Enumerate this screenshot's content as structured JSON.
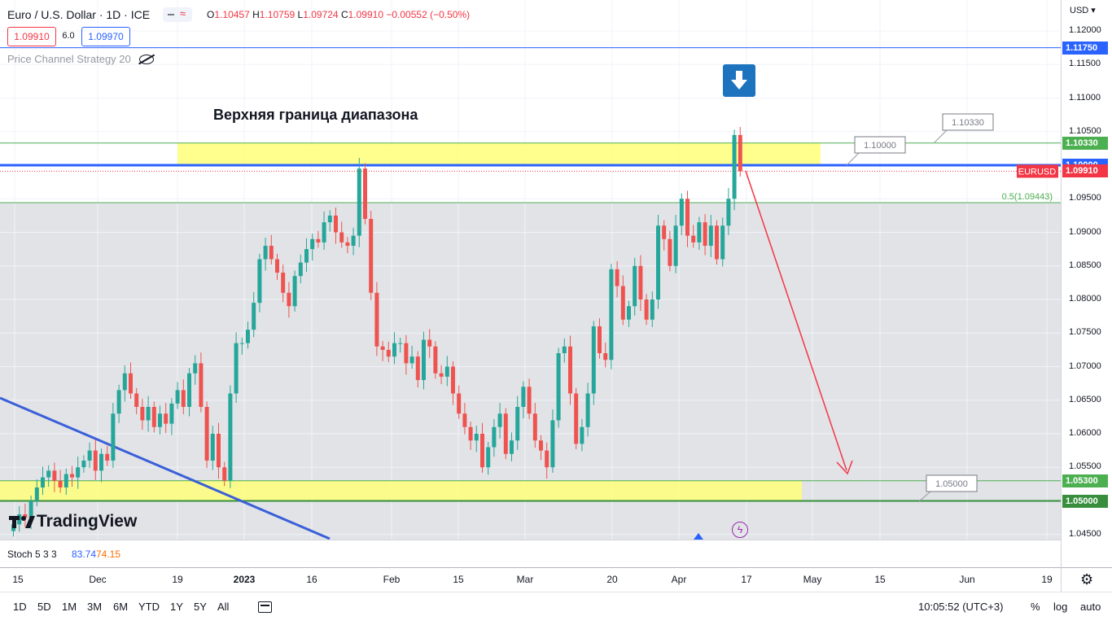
{
  "symbol": {
    "name": "Euro / U.S. Dollar · 1D · ICE",
    "ohlc": {
      "o_label": "O",
      "o": "1.10457",
      "h_label": "H",
      "h": "1.10759",
      "l_label": "L",
      "l": "1.09724",
      "c_label": "C",
      "c": "1.09910",
      "change": "−0.00552 (−0.50%)"
    },
    "sell_price": "1.09910",
    "spread": "6.0",
    "buy_price": "1.09970"
  },
  "strategy_label": "Price Channel Strategy 20",
  "annotation_text": "Верхняя граница диапазона",
  "currency": "USD",
  "price_ticks": [
    "1.12000",
    "1.11500",
    "1.11000",
    "1.10500",
    "1.10000",
    "1.09500",
    "1.09000",
    "1.08500",
    "1.08000",
    "1.07500",
    "1.07000",
    "1.06500",
    "1.06000",
    "1.05500",
    "1.05000",
    "1.04500"
  ],
  "price_labels": [
    {
      "text": "1.11750",
      "color": "#2962ff"
    },
    {
      "text": "1.10330",
      "color": "#4caf50"
    },
    {
      "text": "1.10000",
      "color": "#2962ff"
    },
    {
      "text": "1.09910",
      "color": "#f23645"
    },
    {
      "text": "1.05300",
      "color": "#4caf50"
    },
    {
      "text": "1.05000",
      "color": "#388e3c"
    }
  ],
  "symbol_tag": "EURUSD",
  "fib_label": "0.5(1.09443)",
  "callouts": [
    "1.10330",
    "1.10000",
    "1.05000"
  ],
  "stoch": {
    "name": "Stoch 5 3 3",
    "k": "83.74",
    "d": "74.15"
  },
  "time_ticks": [
    "15",
    "Dec",
    "19",
    "2023",
    "16",
    "Feb",
    "15",
    "Mar",
    "20",
    "Apr",
    "17",
    "May",
    "15",
    "Jun",
    "19"
  ],
  "ranges": [
    "1D",
    "5D",
    "1M",
    "3M",
    "6M",
    "YTD",
    "1Y",
    "5Y",
    "All"
  ],
  "clock": "10:05:52 (UTC+3)",
  "toggles": [
    "%",
    "log",
    "auto"
  ],
  "watermark": "TradingView",
  "colors": {
    "up": "#26a69a",
    "down": "#ef5350",
    "zone": "#ffff7a",
    "blue_line": "#2962ff",
    "arrow": "#f23645"
  }
}
